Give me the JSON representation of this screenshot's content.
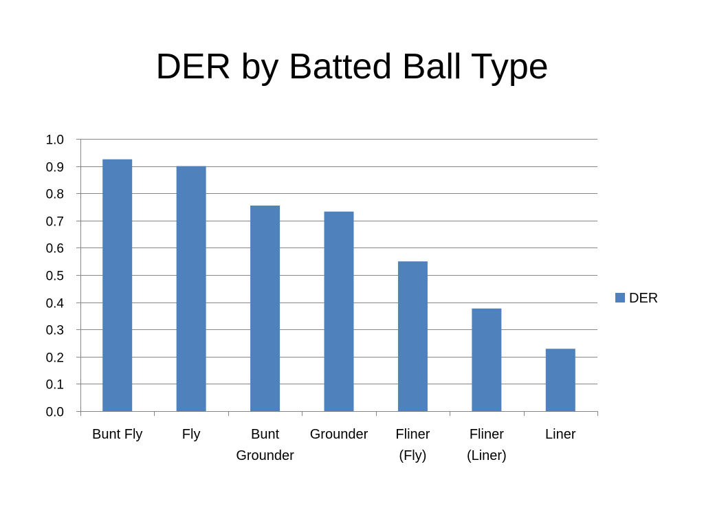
{
  "chart_data": {
    "type": "bar",
    "title": "DER by Batted Ball Type",
    "categories": [
      [
        "Bunt Fly"
      ],
      [
        "Fly"
      ],
      [
        "Bunt",
        "Grounder"
      ],
      [
        "Grounder"
      ],
      [
        "Fliner",
        "(Fly)"
      ],
      [
        "Fliner",
        "(Liner)"
      ],
      [
        "Liner"
      ]
    ],
    "series": [
      {
        "name": "DER",
        "color": "#4f81bd",
        "values": [
          0.925,
          0.9,
          0.755,
          0.733,
          0.55,
          0.377,
          0.229
        ]
      }
    ],
    "ylim": [
      0,
      1.0
    ],
    "yticks": [
      "0.0",
      "0.1",
      "0.2",
      "0.3",
      "0.4",
      "0.5",
      "0.6",
      "0.7",
      "0.8",
      "0.9",
      "1.0"
    ],
    "grid": true,
    "legend": "right",
    "xlabel": "",
    "ylabel": ""
  }
}
